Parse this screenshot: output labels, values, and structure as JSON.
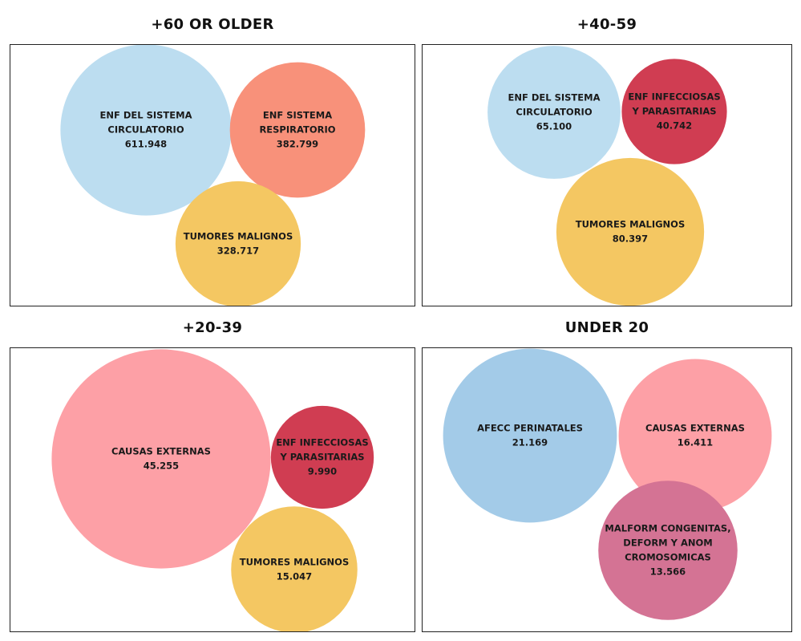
{
  "chart_data": [
    {
      "type": "bubble",
      "title": "+60 OR OLDER",
      "bubbles": [
        {
          "label_lines": [
            "ENF DEL SISTEMA",
            "CIRCULATORIO"
          ],
          "value": 611948,
          "value_label": "611.948",
          "color": "#BCDDF0"
        },
        {
          "label_lines": [
            "ENF SISTEMA",
            "RESPIRATORIO"
          ],
          "value": 382799,
          "value_label": "382.799",
          "color": "#F8917A"
        },
        {
          "label_lines": [
            "TUMORES MALIGNOS"
          ],
          "value": 328717,
          "value_label": "328.717",
          "color": "#F4C762"
        }
      ]
    },
    {
      "type": "bubble",
      "title": "+40-59",
      "bubbles": [
        {
          "label_lines": [
            "ENF DEL SISTEMA",
            "CIRCULATORIO"
          ],
          "value": 65100,
          "value_label": "65.100",
          "color": "#BCDDF0"
        },
        {
          "label_lines": [
            "ENF INFECCIOSAS",
            "Y PARASITARIAS"
          ],
          "value": 40742,
          "value_label": "40.742",
          "color": "#D03D52"
        },
        {
          "label_lines": [
            "TUMORES MALIGNOS"
          ],
          "value": 80397,
          "value_label": "80.397",
          "color": "#F4C762"
        }
      ]
    },
    {
      "type": "bubble",
      "title": "+20-39",
      "bubbles": [
        {
          "label_lines": [
            "CAUSAS EXTERNAS"
          ],
          "value": 45255,
          "value_label": "45.255",
          "color": "#FDA0A6"
        },
        {
          "label_lines": [
            "ENF INFECCIOSAS",
            "Y PARASITARIAS"
          ],
          "value": 9990,
          "value_label": "9.990",
          "color": "#D03D52"
        },
        {
          "label_lines": [
            "TUMORES MALIGNOS"
          ],
          "value": 15047,
          "value_label": "15.047",
          "color": "#F4C762"
        }
      ]
    },
    {
      "type": "bubble",
      "title": "UNDER 20",
      "bubbles": [
        {
          "label_lines": [
            "AFECC  PERINATALES"
          ],
          "value": 21169,
          "value_label": "21.169",
          "color": "#A3CBE8"
        },
        {
          "label_lines": [
            "CAUSAS EXTERNAS"
          ],
          "value": 16411,
          "value_label": "16.411",
          "color": "#FDA0A6"
        },
        {
          "label_lines": [
            "MALFORM  CONGENITAS,",
            "DEFORM  Y ANOM",
            "CROMOSOMICAS"
          ],
          "value": 13566,
          "value_label": "13.566",
          "color": "#D47394"
        }
      ]
    }
  ]
}
